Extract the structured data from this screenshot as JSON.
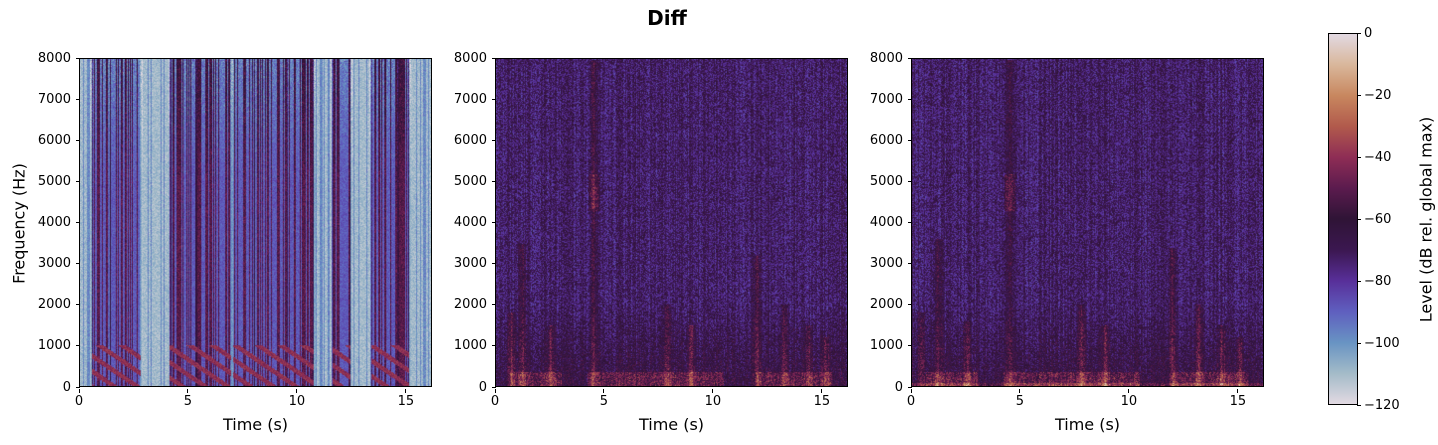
{
  "figure": {
    "title": "Diff"
  },
  "colorbar": {
    "label": "Level (dB rel. global max)",
    "colormap": "twilight",
    "vmin": -120,
    "vmax": 0,
    "ticks": [
      "0",
      "−20",
      "−40",
      "−60",
      "−80",
      "−100",
      "−120"
    ],
    "tick_values": [
      0,
      -20,
      -40,
      -60,
      -80,
      -100,
      -120
    ],
    "stops": [
      "#e2d9e2",
      "#a3bbc8",
      "#6893c3",
      "#5f5fbf",
      "#582f99",
      "#3b1750",
      "#2f1436",
      "#5b1b4e",
      "#8e2d55",
      "#b15a4c",
      "#c8875f",
      "#d9b79b",
      "#e2d9e2"
    ]
  },
  "chart_data": [
    {
      "type": "heatmap",
      "title": "",
      "xlabel": "Time (s)",
      "ylabel": "Frequency (Hz)",
      "xlim": [
        0,
        16.2
      ],
      "ylim": [
        0,
        8000
      ],
      "xticks": [
        "0",
        "5",
        "10",
        "15"
      ],
      "xtick_values": [
        0,
        5,
        10,
        15
      ],
      "yticks": [
        "0",
        "1000",
        "2000",
        "3000",
        "4000",
        "5000",
        "6000",
        "7000",
        "8000"
      ],
      "ytick_values": [
        0,
        1000,
        2000,
        3000,
        4000,
        5000,
        6000,
        7000,
        8000
      ],
      "style": "speech-masked",
      "description": "Spectrogram: mostly light (about -110 to -120 dB) background with dark purple vertical speech bands and red harmonic striations below ~1000 Hz",
      "speech_segments_s": [
        [
          0.6,
          1.3
        ],
        [
          1.4,
          2.7
        ],
        [
          4.2,
          5.3
        ],
        [
          5.4,
          6.9
        ],
        [
          7.1,
          8.0
        ],
        [
          8.1,
          9.5
        ],
        [
          9.6,
          10.7
        ],
        [
          11.7,
          12.4
        ],
        [
          13.5,
          14.6
        ],
        [
          14.7,
          15.1
        ]
      ]
    },
    {
      "type": "heatmap",
      "title": "",
      "xlabel": "Time (s)",
      "ylabel": "",
      "xlim": [
        0,
        16.2
      ],
      "ylim": [
        0,
        8000
      ],
      "xticks": [
        "0",
        "5",
        "10",
        "15"
      ],
      "xtick_values": [
        0,
        5,
        10,
        15
      ],
      "yticks": [
        "0",
        "1000",
        "2000",
        "3000",
        "4000",
        "5000",
        "6000",
        "7000",
        "8000"
      ],
      "ytick_values": [
        0,
        1000,
        2000,
        3000,
        4000,
        5000,
        6000,
        7000,
        8000
      ],
      "style": "noise",
      "description": "Spectrogram: purple (about -60 to -85 dB) noise floor with warm bursts; strong vertical streak near 4.5 s peaking around 4800 Hz; low-frequency energy below 2000 Hz",
      "hot_events_s": [
        [
          0.7,
          1800
        ],
        [
          1.2,
          3500
        ],
        [
          2.5,
          1500
        ],
        [
          4.5,
          8000
        ],
        [
          7.9,
          2000
        ],
        [
          9.0,
          1500
        ],
        [
          12.0,
          3200
        ],
        [
          13.3,
          2000
        ],
        [
          14.4,
          1500
        ],
        [
          15.2,
          1200
        ]
      ]
    },
    {
      "type": "heatmap",
      "title": "",
      "xlabel": "Time (s)",
      "ylabel": "",
      "xlim": [
        0,
        16.2
      ],
      "ylim": [
        0,
        8000
      ],
      "xticks": [
        "0",
        "5",
        "10",
        "15"
      ],
      "xtick_values": [
        0,
        5,
        10,
        15
      ],
      "yticks": [
        "0",
        "1000",
        "2000",
        "3000",
        "4000",
        "5000",
        "6000",
        "7000",
        "8000"
      ],
      "ytick_values": [
        0,
        1000,
        2000,
        3000,
        4000,
        5000,
        6000,
        7000,
        8000
      ],
      "style": "noise",
      "description": "Spectrogram similar to panel 2 with slightly more blue high-frequency texture and a warm band near 0-100 Hz",
      "hot_events_s": [
        [
          0.4,
          1800
        ],
        [
          1.2,
          3600
        ],
        [
          2.5,
          1600
        ],
        [
          4.5,
          8000
        ],
        [
          7.8,
          2000
        ],
        [
          8.9,
          1500
        ],
        [
          12.0,
          3400
        ],
        [
          13.2,
          2000
        ],
        [
          14.3,
          1500
        ],
        [
          15.1,
          1200
        ]
      ]
    }
  ]
}
